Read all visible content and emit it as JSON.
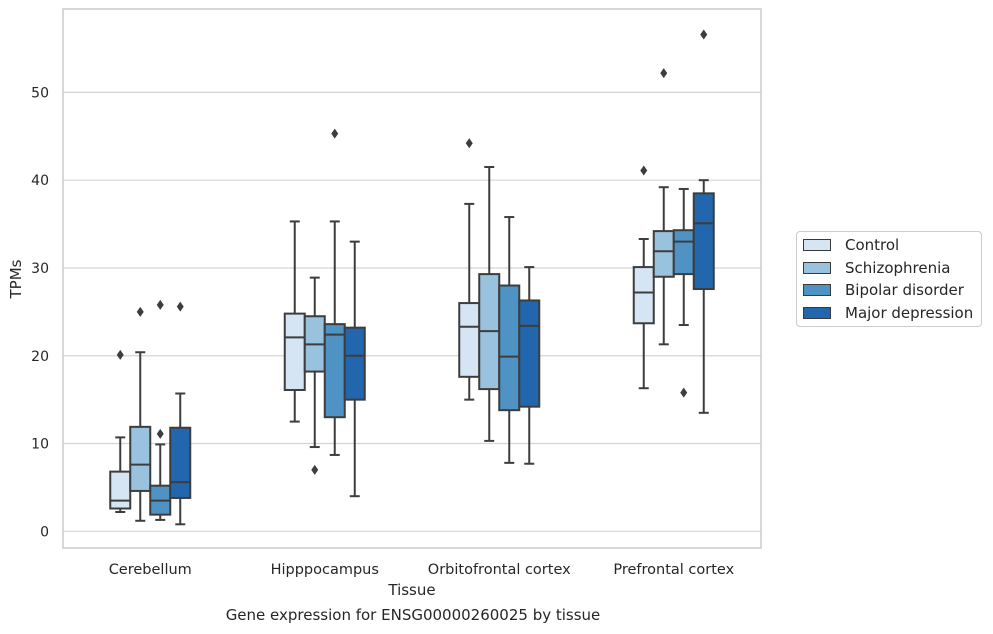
{
  "chart_data": {
    "type": "box",
    "title": "",
    "xlabel": "Tissue",
    "ylabel": "TPMs",
    "caption": "Gene expression for ENSG00000260025 by tissue",
    "ylim": [
      -1.9,
      59.5
    ],
    "yticks": [
      0,
      10,
      20,
      30,
      40,
      50
    ],
    "grid": "horizontal",
    "legend_position": "right",
    "categories": [
      "Cerebellum",
      "Hipppocampus",
      "Orbitofrontal cortex",
      "Prefrontal cortex"
    ],
    "series": [
      {
        "name": "Control",
        "color": "#d6e5f4",
        "boxes": [
          {
            "whislo": 2.2,
            "q1": 2.6,
            "med": 3.5,
            "q3": 6.8,
            "whishi": 10.7,
            "fliers": [
              20.1
            ]
          },
          {
            "whislo": 12.5,
            "q1": 16.1,
            "med": 22.1,
            "q3": 24.8,
            "whishi": 35.3,
            "fliers": []
          },
          {
            "whislo": 15.0,
            "q1": 17.6,
            "med": 23.3,
            "q3": 26.0,
            "whishi": 37.3,
            "fliers": [
              44.2
            ]
          },
          {
            "whislo": 16.3,
            "q1": 23.7,
            "med": 27.2,
            "q3": 30.1,
            "whishi": 33.3,
            "fliers": [
              41.1
            ]
          }
        ]
      },
      {
        "name": "Schizophrenia",
        "color": "#99c2df",
        "boxes": [
          {
            "whislo": 1.2,
            "q1": 4.6,
            "med": 7.6,
            "q3": 11.9,
            "whishi": 20.4,
            "fliers": [
              25.0
            ]
          },
          {
            "whislo": 9.6,
            "q1": 18.2,
            "med": 21.3,
            "q3": 24.5,
            "whishi": 28.9,
            "fliers": [
              7.0
            ]
          },
          {
            "whislo": 10.3,
            "q1": 16.2,
            "med": 22.8,
            "q3": 29.3,
            "whishi": 41.5,
            "fliers": []
          },
          {
            "whislo": 21.3,
            "q1": 29.0,
            "med": 31.9,
            "q3": 34.2,
            "whishi": 39.2,
            "fliers": [
              52.2
            ]
          }
        ]
      },
      {
        "name": "Bipolar disorder",
        "color": "#4f93c4",
        "boxes": [
          {
            "whislo": 1.3,
            "q1": 1.9,
            "med": 3.5,
            "q3": 5.2,
            "whishi": 9.9,
            "fliers": [
              11.1,
              25.8
            ]
          },
          {
            "whislo": 8.7,
            "q1": 13.0,
            "med": 22.4,
            "q3": 23.6,
            "whishi": 35.3,
            "fliers": [
              45.3
            ]
          },
          {
            "whislo": 7.8,
            "q1": 13.8,
            "med": 19.9,
            "q3": 28.0,
            "whishi": 35.8,
            "fliers": []
          },
          {
            "whislo": 23.5,
            "q1": 29.3,
            "med": 33.0,
            "q3": 34.3,
            "whishi": 39.0,
            "fliers": [
              15.8
            ]
          }
        ]
      },
      {
        "name": "Major depression",
        "color": "#2266ad",
        "boxes": [
          {
            "whislo": 0.8,
            "q1": 3.8,
            "med": 5.6,
            "q3": 11.8,
            "whishi": 15.7,
            "fliers": [
              25.6
            ]
          },
          {
            "whislo": 4.0,
            "q1": 15.0,
            "med": 20.0,
            "q3": 23.2,
            "whishi": 33.0,
            "fliers": []
          },
          {
            "whislo": 7.7,
            "q1": 14.2,
            "med": 23.4,
            "q3": 26.3,
            "whishi": 30.1,
            "fliers": []
          },
          {
            "whislo": 13.5,
            "q1": 27.6,
            "med": 35.1,
            "q3": 38.5,
            "whishi": 40.0,
            "fliers": [
              56.6
            ]
          }
        ]
      }
    ]
  }
}
